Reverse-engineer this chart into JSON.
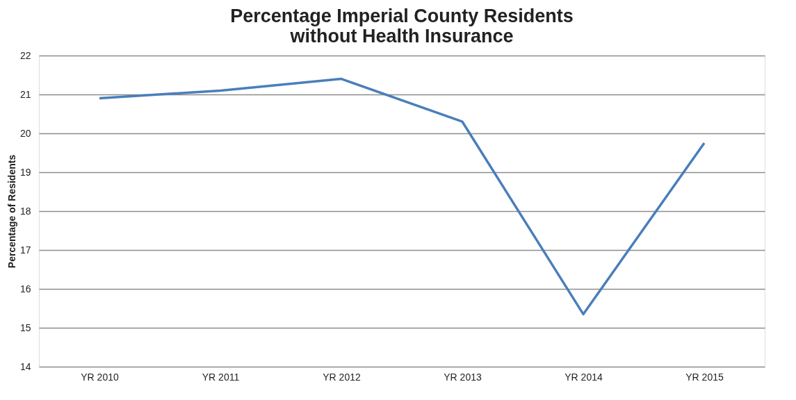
{
  "chart_data": {
    "type": "line",
    "title": "Percentage Imperial County Residents without Health Insurance",
    "ylabel": "Percentage of Residents",
    "categories": [
      "YR 2010",
      "YR 2011",
      "YR 2012",
      "YR 2013",
      "YR 2014",
      "YR 2015"
    ],
    "series": [
      {
        "color": "#4a7ebb",
        "values": [
          20.9,
          21.1,
          21.4,
          20.3,
          15.35,
          19.75
        ]
      }
    ],
    "ylim": [
      14,
      22
    ],
    "yticks": [
      14,
      15,
      16,
      17,
      18,
      19,
      20,
      21,
      22
    ],
    "grid": "y",
    "marker": "none",
    "line_style": "solid"
  }
}
